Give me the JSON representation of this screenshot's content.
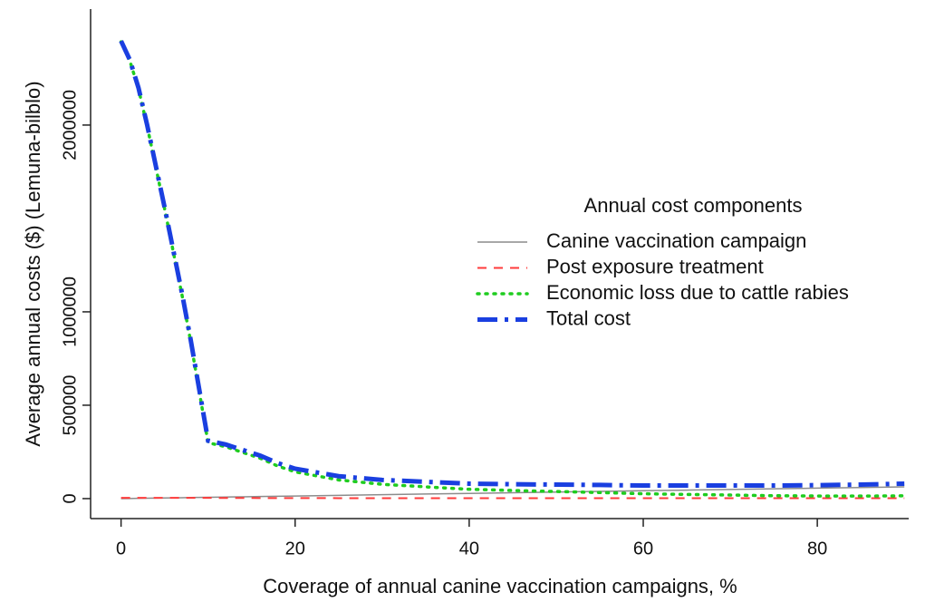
{
  "chart_data": {
    "type": "line",
    "xlabel": "Coverage of annual canine vaccination campaigns, %",
    "ylabel": "Average annual costs ($) (Lemuna-bilblo)",
    "x": [
      0,
      1,
      2,
      3,
      4,
      5,
      6,
      7,
      8,
      9,
      10,
      12,
      14,
      16,
      18,
      20,
      25,
      30,
      35,
      40,
      45,
      50,
      55,
      60,
      65,
      70,
      75,
      80,
      85,
      90
    ],
    "series": [
      {
        "name": "Canine vaccination campaign",
        "color": "#8c8c8c",
        "dash": "solid",
        "values": [
          0,
          700,
          1400,
          2100,
          2800,
          3500,
          4200,
          4900,
          5600,
          6300,
          7000,
          8400,
          9800,
          11200,
          12600,
          14000,
          17500,
          21000,
          24500,
          28000,
          31500,
          35000,
          38500,
          42000,
          45500,
          49000,
          52500,
          56000,
          59500,
          63000
        ]
      },
      {
        "name": "Post exposure treatment",
        "color": "#ff3b3b",
        "dash": "dashed",
        "values": [
          4000,
          4000,
          4000,
          4000,
          4000,
          4000,
          4000,
          4000,
          4000,
          4000,
          4000,
          3500,
          3500,
          3000,
          3000,
          3000,
          2500,
          2500,
          2500,
          2000,
          2000,
          2000,
          2000,
          2000,
          2000,
          2000,
          2000,
          2000,
          2000,
          2000
        ]
      },
      {
        "name": "Economic loss due to cattle rabies",
        "color": "#1fcc1f",
        "dash": "dotted",
        "values": [
          2446000,
          2345300,
          2194600,
          1993900,
          1773200,
          1552500,
          1321800,
          1091100,
          840400,
          569700,
          299000,
          278100,
          246700,
          215800,
          174400,
          143000,
          100000,
          76500,
          63000,
          50000,
          43500,
          38000,
          32500,
          26000,
          22500,
          19000,
          15500,
          14000,
          13500,
          15000
        ]
      },
      {
        "name": "Total cost",
        "color": "#1a3fe0",
        "dash": "dotdash",
        "values": [
          2450000,
          2350000,
          2200000,
          2000000,
          1780000,
          1560000,
          1330000,
          1100000,
          850000,
          580000,
          310000,
          290000,
          260000,
          230000,
          190000,
          160000,
          120000,
          100000,
          90000,
          80000,
          77000,
          75000,
          73000,
          70000,
          70000,
          70000,
          70000,
          72000,
          75000,
          80000
        ]
      }
    ],
    "legend_title": "Annual cost components",
    "legend": "right",
    "xlim": [
      -3.5,
      90.5
    ],
    "xticks": [
      0,
      20,
      40,
      60,
      80
    ],
    "ylim": [
      -107000,
      2621000
    ],
    "yticks": [
      0,
      500000,
      1000000,
      2000000
    ],
    "grid": false
  }
}
